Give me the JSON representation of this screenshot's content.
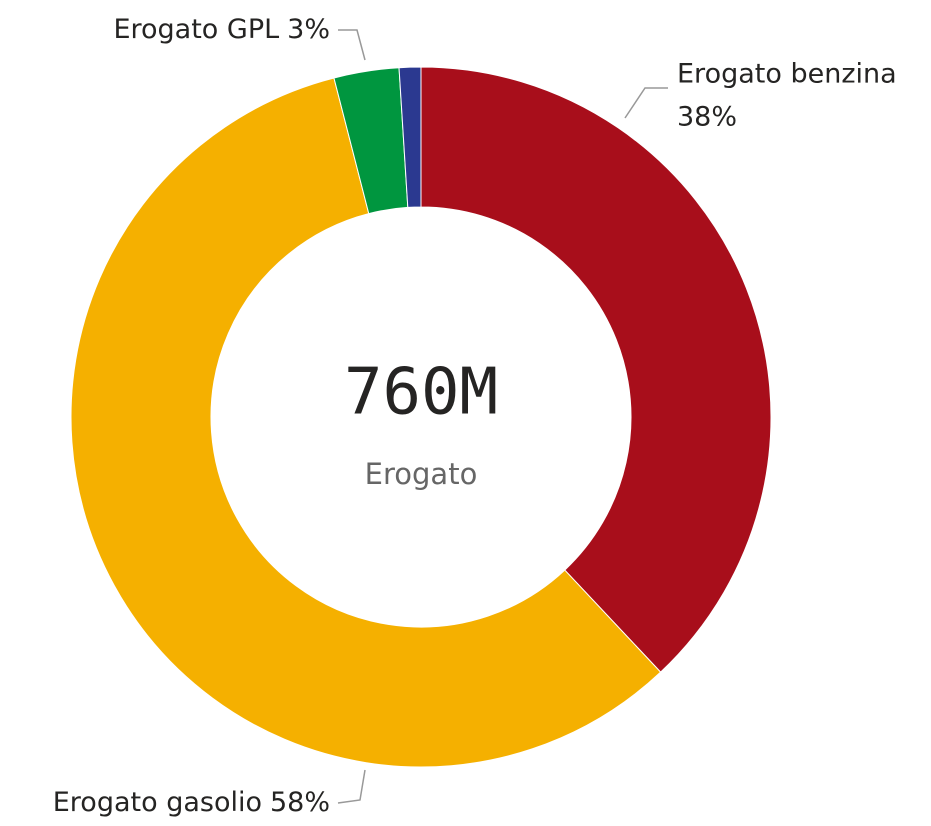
{
  "chart_data": {
    "type": "donut",
    "categories": [
      "Erogato benzina",
      "Erogato gasolio",
      "Erogato GPL",
      null
    ],
    "values": [
      38,
      58,
      3,
      1
    ],
    "value_labels": [
      "38%",
      "58%",
      "3%",
      null
    ],
    "colors": [
      "#a80e1b",
      "#f5b000",
      "#00963f",
      "#2b3990"
    ],
    "center_value": {
      "value": 760000000,
      "label": "760M"
    },
    "center_title": "Erogato"
  }
}
